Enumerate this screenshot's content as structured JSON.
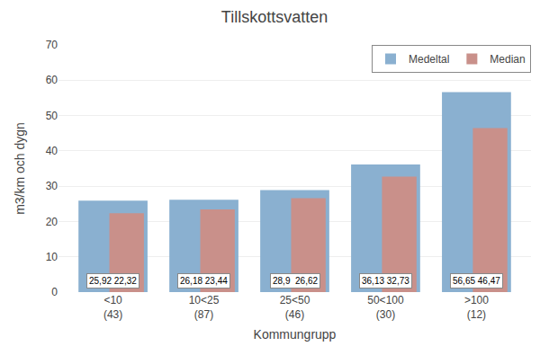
{
  "chart_data": {
    "type": "bar",
    "title": "Tillskottsvatten",
    "x_label": "Kommungrupp",
    "y_label": "m3/km och dygn",
    "categories": [
      "<10\n(43)",
      "10<25\n(87)",
      "25<50\n(46)",
      "50<100\n(30)",
      ">100\n(12)"
    ],
    "series": [
      {
        "name": "Medeltal",
        "color": "#8ab0d0",
        "values": [
          25.92,
          26.18,
          28.9,
          36.13,
          56.65
        ]
      },
      {
        "name": "Median",
        "color": "#c9908a",
        "values": [
          22.32,
          23.44,
          26.62,
          32.73,
          46.47
        ]
      }
    ],
    "annotations": [
      "25,92 22,32",
      "26,18 23,44",
      "28,9  26,62",
      "36,13 32,73",
      "56,65 46,47"
    ],
    "ylim": [
      0,
      70
    ],
    "yticks": [
      0,
      10,
      20,
      30,
      40,
      50,
      60,
      70
    ],
    "grid": true,
    "legend": "upper right"
  }
}
